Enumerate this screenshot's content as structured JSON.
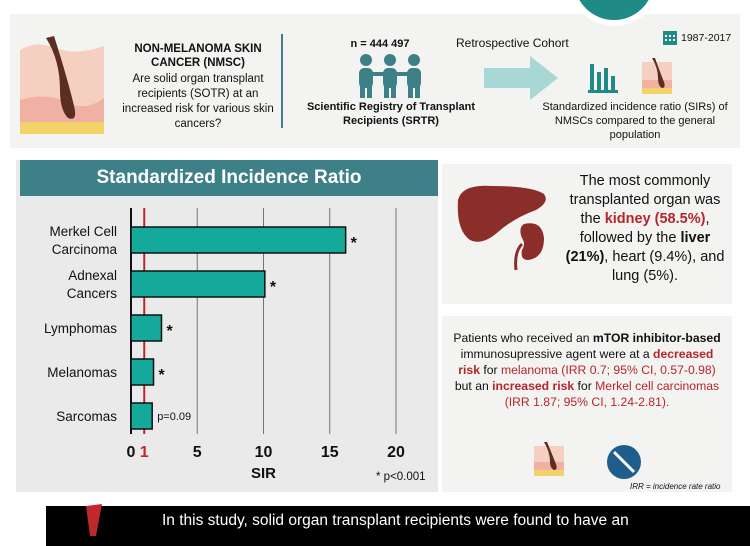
{
  "header": {
    "nmsc_title": "NON-MELANOMA SKIN CANCER (NMSC)",
    "nmsc_question": "Are solid organ transplant recipients (SOTR) at an increased risk for various skin cancers?",
    "n_label": "n = 444 497",
    "registry": "Scientific Registry of Transplant Recipients (SRTR)",
    "cohort": "Retrospective Cohort",
    "years": "1987-2017",
    "outcome": "Standardized incidence ratio (SIRs) of NMSCs compared to the general population"
  },
  "chart_data": {
    "type": "bar",
    "orientation": "horizontal",
    "title": "Standardized Incidence Ratio",
    "xlabel": "SIR",
    "categories": [
      "Merkel Cell Carcinoma",
      "Adnexal Cancers",
      "Lymphomas",
      "Melanomas",
      "Sarcomas"
    ],
    "category_lines": [
      [
        "Merkel Cell",
        "Carcinoma"
      ],
      [
        "Adnexal",
        "Cancers"
      ],
      [
        "Lymphomas"
      ],
      [
        "Melanomas"
      ],
      [
        "Sarcomas"
      ]
    ],
    "values": [
      16.2,
      10.1,
      2.3,
      1.7,
      1.6
    ],
    "annotations": [
      "*",
      "*",
      "*",
      "*",
      "p=0.09"
    ],
    "xticks": [
      "0",
      "1",
      "5",
      "10",
      "15",
      "20"
    ],
    "xtick_values": [
      0,
      1,
      5,
      10,
      15,
      20
    ],
    "xlim": [
      0,
      22
    ],
    "reference_line": 1,
    "footnote": "* p<0.001",
    "colors": {
      "bar": "#14a99b",
      "reference": "#c0282d"
    }
  },
  "organ_box": {
    "text1": "The most commonly transplanted organ was the",
    "kidney": "kidney (58.5%)",
    "text2": ", followed by the",
    "liver": "liver (21%)",
    "text3": ", heart (9.4%), and lung (5%)."
  },
  "mtor_box": {
    "t1": "Patients who received an",
    "mtor": "mTOR inhibitor-based",
    "t2": "immunosupressive agent were at a",
    "decreased": "decreased risk",
    "t3": "for",
    "melanoma": "melanoma (IRR 0.7; 95% CI, 0.57-0.98)",
    "t4": "but an",
    "increased": "increased risk",
    "t5": "for",
    "merkel": "Merkel cell carcinomas (IRR 1.87; 95% CI, 1.24-2.81).",
    "irr_note": "IRR = incidence rate ratio"
  },
  "bottom": {
    "text": "In this study, solid organ transplant recipients were found to have an"
  },
  "colors": {
    "teal": "#3e8088",
    "red": "#b5262c",
    "bar": "#14a99b"
  }
}
